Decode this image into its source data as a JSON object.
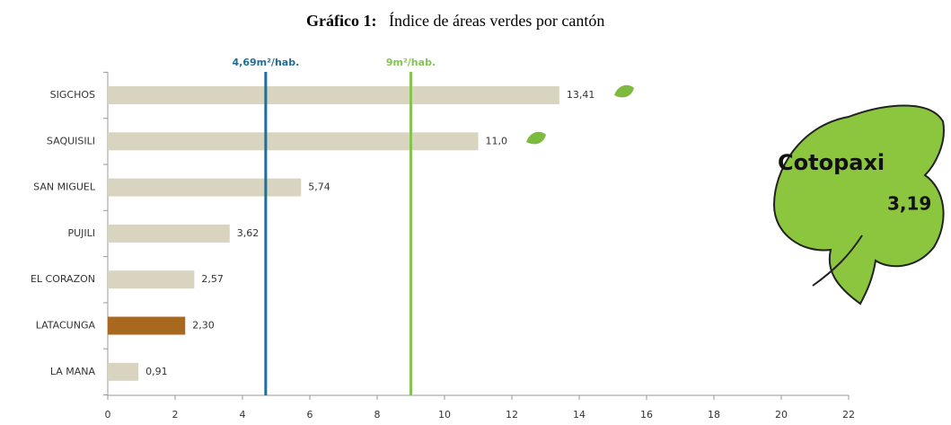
{
  "chart_data": {
    "type": "hbar",
    "title_label": "Gráfico 1:",
    "title": "Índice de áreas verdes por cantón",
    "categories": [
      "SIGCHOS",
      "SAQUISILI",
      "SAN MIGUEL",
      "PUJILI",
      "EL CORAZON",
      "LATACUNGA",
      "LA MANA"
    ],
    "values": [
      13.41,
      11.0,
      5.74,
      3.62,
      2.57,
      2.3,
      0.91
    ],
    "value_labels": [
      "13,41",
      "11,0",
      "5,74",
      "3,62",
      "2,57",
      "2,30",
      "0,91"
    ],
    "colors": [
      "#d8d4bf",
      "#d8d4bf",
      "#d8d4bf",
      "#d8d4bf",
      "#d8d4bf",
      "#a8691f",
      "#d8d4bf"
    ],
    "xlim": [
      0,
      22
    ],
    "xticks": [
      0,
      2,
      4,
      6,
      8,
      10,
      12,
      14,
      16,
      18,
      20,
      22
    ],
    "reference_lines": [
      {
        "value": 4.69,
        "label": "4,69m²/hab.",
        "color": "#1f6f95"
      },
      {
        "value": 9,
        "label": "9m²/hab.",
        "color": "#86c451"
      }
    ],
    "annotation": {
      "title": "Cotopaxi",
      "label": "3,19"
    }
  }
}
